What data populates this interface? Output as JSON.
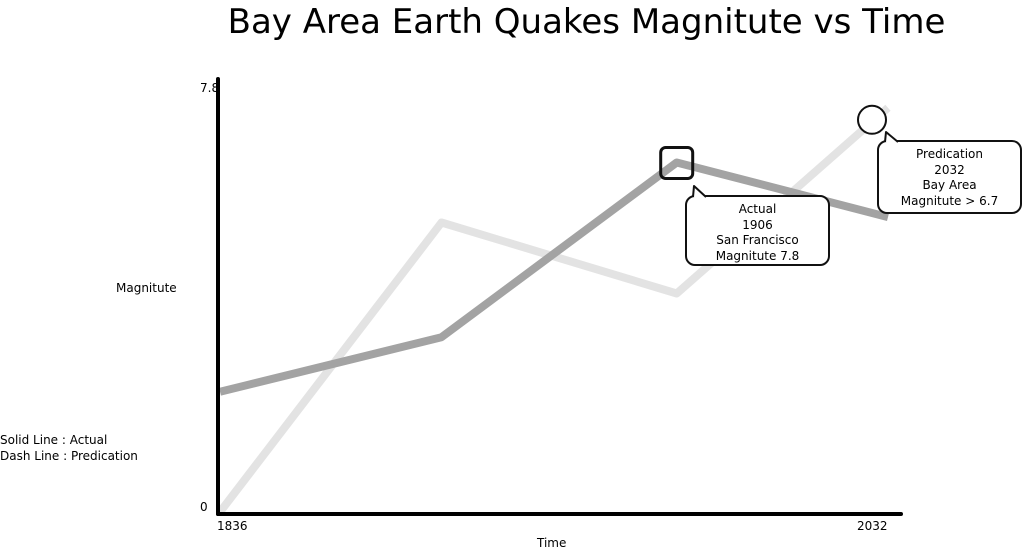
{
  "chart_data": {
    "type": "line",
    "title": "Bay Area Earth Quakes Magnitute vs Time",
    "xlabel": "Time",
    "ylabel": "Magnitute",
    "x_tick_labels": [
      "1836",
      "2032"
    ],
    "y_tick_labels": [
      "0",
      "7.8"
    ],
    "xlim": [
      1836,
      2032
    ],
    "ylim": [
      0,
      7.8
    ],
    "x": [
      1836,
      1901,
      1970,
      2032
    ],
    "series": [
      {
        "values": [
          2.2,
          3.2,
          6.4,
          5.4
        ],
        "color": "#a3a3a3"
      },
      {
        "values": [
          0,
          5.3,
          4.0,
          7.4
        ],
        "color": "#e3e3e3"
      }
    ],
    "legend": {
      "position": "left",
      "entries": [
        "Solid Line : Actual",
        "Dash Line : Predication"
      ]
    },
    "annotations": [
      {
        "lines": [
          "Actual",
          "1906",
          "San Francisco",
          "Magnitute 7.8"
        ],
        "marker": "square"
      },
      {
        "lines": [
          "Predication",
          "2032",
          "Bay Area",
          "Magnitute > 6.7"
        ],
        "marker": "circle"
      }
    ],
    "grid": false
  }
}
